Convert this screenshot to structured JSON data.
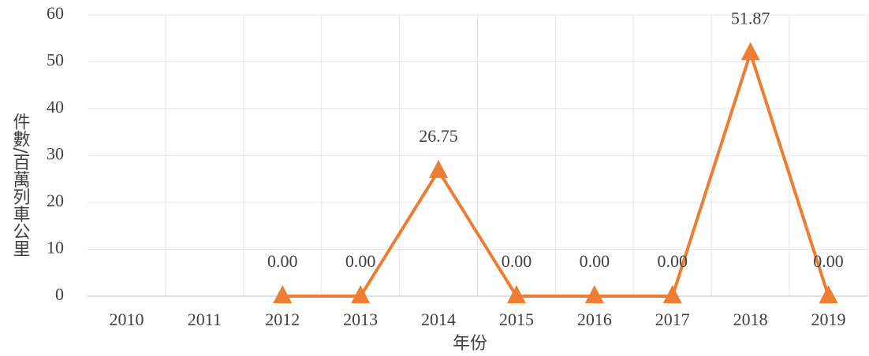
{
  "chart_data": {
    "type": "line",
    "x_label": "年份",
    "y_label": "件數/百萬列車公里",
    "categories": [
      "2010",
      "2011",
      "2012",
      "2013",
      "2014",
      "2015",
      "2016",
      "2017",
      "2018",
      "2019"
    ],
    "series": [
      {
        "name": "件數/百萬列車公里",
        "color": "#ed7d31",
        "values": [
          null,
          null,
          0,
          0,
          26.75,
          0,
          0,
          0,
          51.87,
          0
        ],
        "value_labels": [
          null,
          null,
          "0.00",
          "0.00",
          "26.75",
          "0.00",
          "0.00",
          "0.00",
          "51.87",
          "0.00"
        ]
      }
    ],
    "ylim": [
      0,
      60
    ],
    "yticks": [
      0,
      10,
      20,
      30,
      40,
      50,
      60
    ],
    "grid": true
  }
}
